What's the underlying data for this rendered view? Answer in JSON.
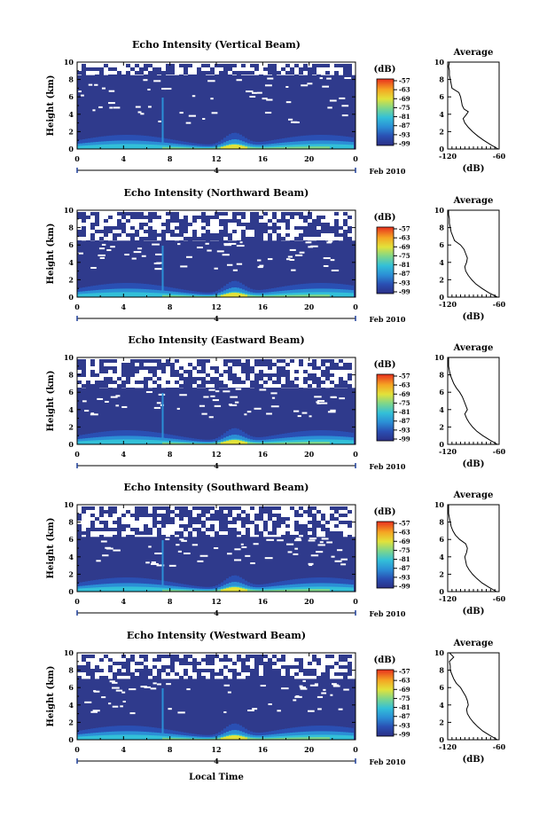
{
  "figure": {
    "xlabel_bottom": "Local Time",
    "date_label": "Feb 2010",
    "day_label": "4"
  },
  "chart_data": [
    {
      "type": "heatmap",
      "title": "Echo Intensity (Vertical Beam)",
      "ylabel": "Height (km)",
      "x_ticks": [
        "0",
        "4",
        "8",
        "12",
        "16",
        "20",
        "0"
      ],
      "y_ticks": [
        "0",
        "2",
        "4",
        "6",
        "8",
        "10"
      ],
      "xlim": [
        0,
        24
      ],
      "ylim": [
        0,
        10
      ],
      "colorbar": {
        "label": "(dB)",
        "ticks": [
          "-57",
          "-63",
          "-69",
          "-75",
          "-81",
          "-87",
          "-93",
          "-99"
        ]
      },
      "upper_boundary_km": 8.5,
      "average_profile": {
        "title": "Average",
        "xlabel": "(dB)",
        "x_ticks": [
          "-120",
          "-60"
        ],
        "xlim": [
          -120,
          -60
        ],
        "y_ticks": [
          "0",
          "2",
          "4",
          "6",
          "8",
          "10"
        ],
        "heights": [
          0,
          0.5,
          1,
          1.5,
          2,
          2.5,
          3,
          3.5,
          4,
          4.3,
          4.6,
          5,
          5.5,
          6,
          6.5,
          7,
          7.5,
          8,
          8.5,
          9,
          9.5,
          10
        ],
        "values": [
          -61,
          -70,
          -78,
          -85,
          -91,
          -96,
          -100,
          -102,
          -98,
          -96,
          -101,
          -103,
          -104,
          -105,
          -107,
          -115,
          -116,
          -117,
          -118,
          -118,
          -119,
          -118
        ]
      }
    },
    {
      "type": "heatmap",
      "title": "Echo Intensity (Northward Beam)",
      "ylabel": "Height (km)",
      "x_ticks": [
        "0",
        "4",
        "8",
        "12",
        "16",
        "20",
        "0"
      ],
      "y_ticks": [
        "0",
        "2",
        "4",
        "6",
        "8",
        "10"
      ],
      "xlim": [
        0,
        24
      ],
      "ylim": [
        0,
        10
      ],
      "colorbar": {
        "label": "(dB)",
        "ticks": [
          "-57",
          "-63",
          "-69",
          "-75",
          "-81",
          "-87",
          "-93",
          "-99"
        ]
      },
      "upper_boundary_km": 6.5,
      "average_profile": {
        "title": "Average",
        "xlabel": "(dB)",
        "x_ticks": [
          "-120",
          "-60"
        ],
        "xlim": [
          -120,
          -60
        ],
        "y_ticks": [
          "0",
          "2",
          "4",
          "6",
          "8",
          "10"
        ],
        "heights": [
          0,
          0.5,
          1,
          1.5,
          2,
          2.5,
          3,
          3.5,
          4,
          4.5,
          5,
          5.5,
          6,
          6.5,
          7,
          7.5,
          8,
          8.5,
          9,
          9.5,
          10
        ],
        "values": [
          -62,
          -72,
          -80,
          -87,
          -92,
          -96,
          -99,
          -100,
          -98,
          -97,
          -99,
          -101,
          -105,
          -112,
          -114,
          -116,
          -117,
          -118,
          -118,
          -119,
          -119
        ]
      }
    },
    {
      "type": "heatmap",
      "title": "Echo Intensity (Eastward Beam)",
      "ylabel": "Height (km)",
      "x_ticks": [
        "0",
        "4",
        "8",
        "12",
        "16",
        "20",
        "0"
      ],
      "y_ticks": [
        "0",
        "2",
        "4",
        "6",
        "8",
        "10"
      ],
      "xlim": [
        0,
        24
      ],
      "ylim": [
        0,
        10
      ],
      "colorbar": {
        "label": "(dB)",
        "ticks": [
          "-57",
          "-63",
          "-69",
          "-75",
          "-81",
          "-87",
          "-93",
          "-99"
        ]
      },
      "upper_boundary_km": 6.5,
      "average_profile": {
        "title": "Average",
        "xlabel": "(dB)",
        "x_ticks": [
          "-120",
          "-60"
        ],
        "xlim": [
          -120,
          -60
        ],
        "y_ticks": [
          "0",
          "2",
          "4",
          "6",
          "8",
          "10"
        ],
        "heights": [
          0,
          0.5,
          1,
          1.5,
          2,
          2.5,
          3,
          3.5,
          4,
          4.5,
          5,
          5.5,
          6,
          6.5,
          7,
          7.5,
          8,
          8.5,
          9,
          9.5,
          10
        ],
        "values": [
          -62,
          -71,
          -79,
          -86,
          -91,
          -95,
          -98,
          -100,
          -97,
          -99,
          -101,
          -103,
          -106,
          -110,
          -113,
          -115,
          -117,
          -118,
          -119,
          -119,
          -119
        ]
      }
    },
    {
      "type": "heatmap",
      "title": "Echo Intensity (Southward Beam)",
      "ylabel": "Height (km)",
      "x_ticks": [
        "0",
        "4",
        "8",
        "12",
        "16",
        "20",
        "0"
      ],
      "y_ticks": [
        "0",
        "2",
        "4",
        "6",
        "8",
        "10"
      ],
      "xlim": [
        0,
        24
      ],
      "ylim": [
        0,
        10
      ],
      "colorbar": {
        "label": "(dB)",
        "ticks": [
          "-57",
          "-63",
          "-69",
          "-75",
          "-81",
          "-87",
          "-93",
          "-99"
        ]
      },
      "upper_boundary_km": 6.3,
      "average_profile": {
        "title": "Average",
        "xlabel": "(dB)",
        "x_ticks": [
          "-120",
          "-60"
        ],
        "xlim": [
          -120,
          -60
        ],
        "y_ticks": [
          "0",
          "2",
          "4",
          "6",
          "8",
          "10"
        ],
        "heights": [
          0,
          0.5,
          1,
          1.5,
          2,
          2.5,
          3,
          3.5,
          4,
          4.5,
          5,
          5.5,
          6,
          6.5,
          7,
          7.5,
          8,
          8.5,
          9,
          9.5,
          10
        ],
        "values": [
          -63,
          -72,
          -80,
          -86,
          -91,
          -95,
          -98,
          -99,
          -100,
          -98,
          -97,
          -99,
          -106,
          -111,
          -114,
          -116,
          -117,
          -118,
          -119,
          -119,
          -119
        ]
      }
    },
    {
      "type": "heatmap",
      "title": "Echo Intensity (Westward Beam)",
      "ylabel": "Height (km)",
      "x_ticks": [
        "0",
        "4",
        "8",
        "12",
        "16",
        "20",
        "0"
      ],
      "y_ticks": [
        "0",
        "2",
        "4",
        "6",
        "8",
        "10"
      ],
      "xlim": [
        0,
        24
      ],
      "ylim": [
        0,
        10
      ],
      "colorbar": {
        "label": "(dB)",
        "ticks": [
          "-57",
          "-63",
          "-69",
          "-75",
          "-81",
          "-87",
          "-93",
          "-99"
        ]
      },
      "upper_boundary_km": 7.0,
      "average_profile": {
        "title": "Average",
        "xlabel": "(dB)",
        "x_ticks": [
          "-120",
          "-60"
        ],
        "xlim": [
          -120,
          -60
        ],
        "y_ticks": [
          "0",
          "2",
          "4",
          "6",
          "8",
          "10"
        ],
        "heights": [
          0,
          0.5,
          1,
          1.5,
          2,
          2.5,
          3,
          3.5,
          4,
          4.5,
          5,
          5.5,
          6,
          6.5,
          7,
          7.5,
          8,
          8.5,
          9,
          9.5,
          10
        ],
        "values": [
          -62,
          -71,
          -79,
          -85,
          -90,
          -94,
          -97,
          -98,
          -96,
          -97,
          -99,
          -102,
          -105,
          -110,
          -113,
          -115,
          -117,
          -117,
          -118,
          -113,
          -118
        ]
      }
    }
  ]
}
